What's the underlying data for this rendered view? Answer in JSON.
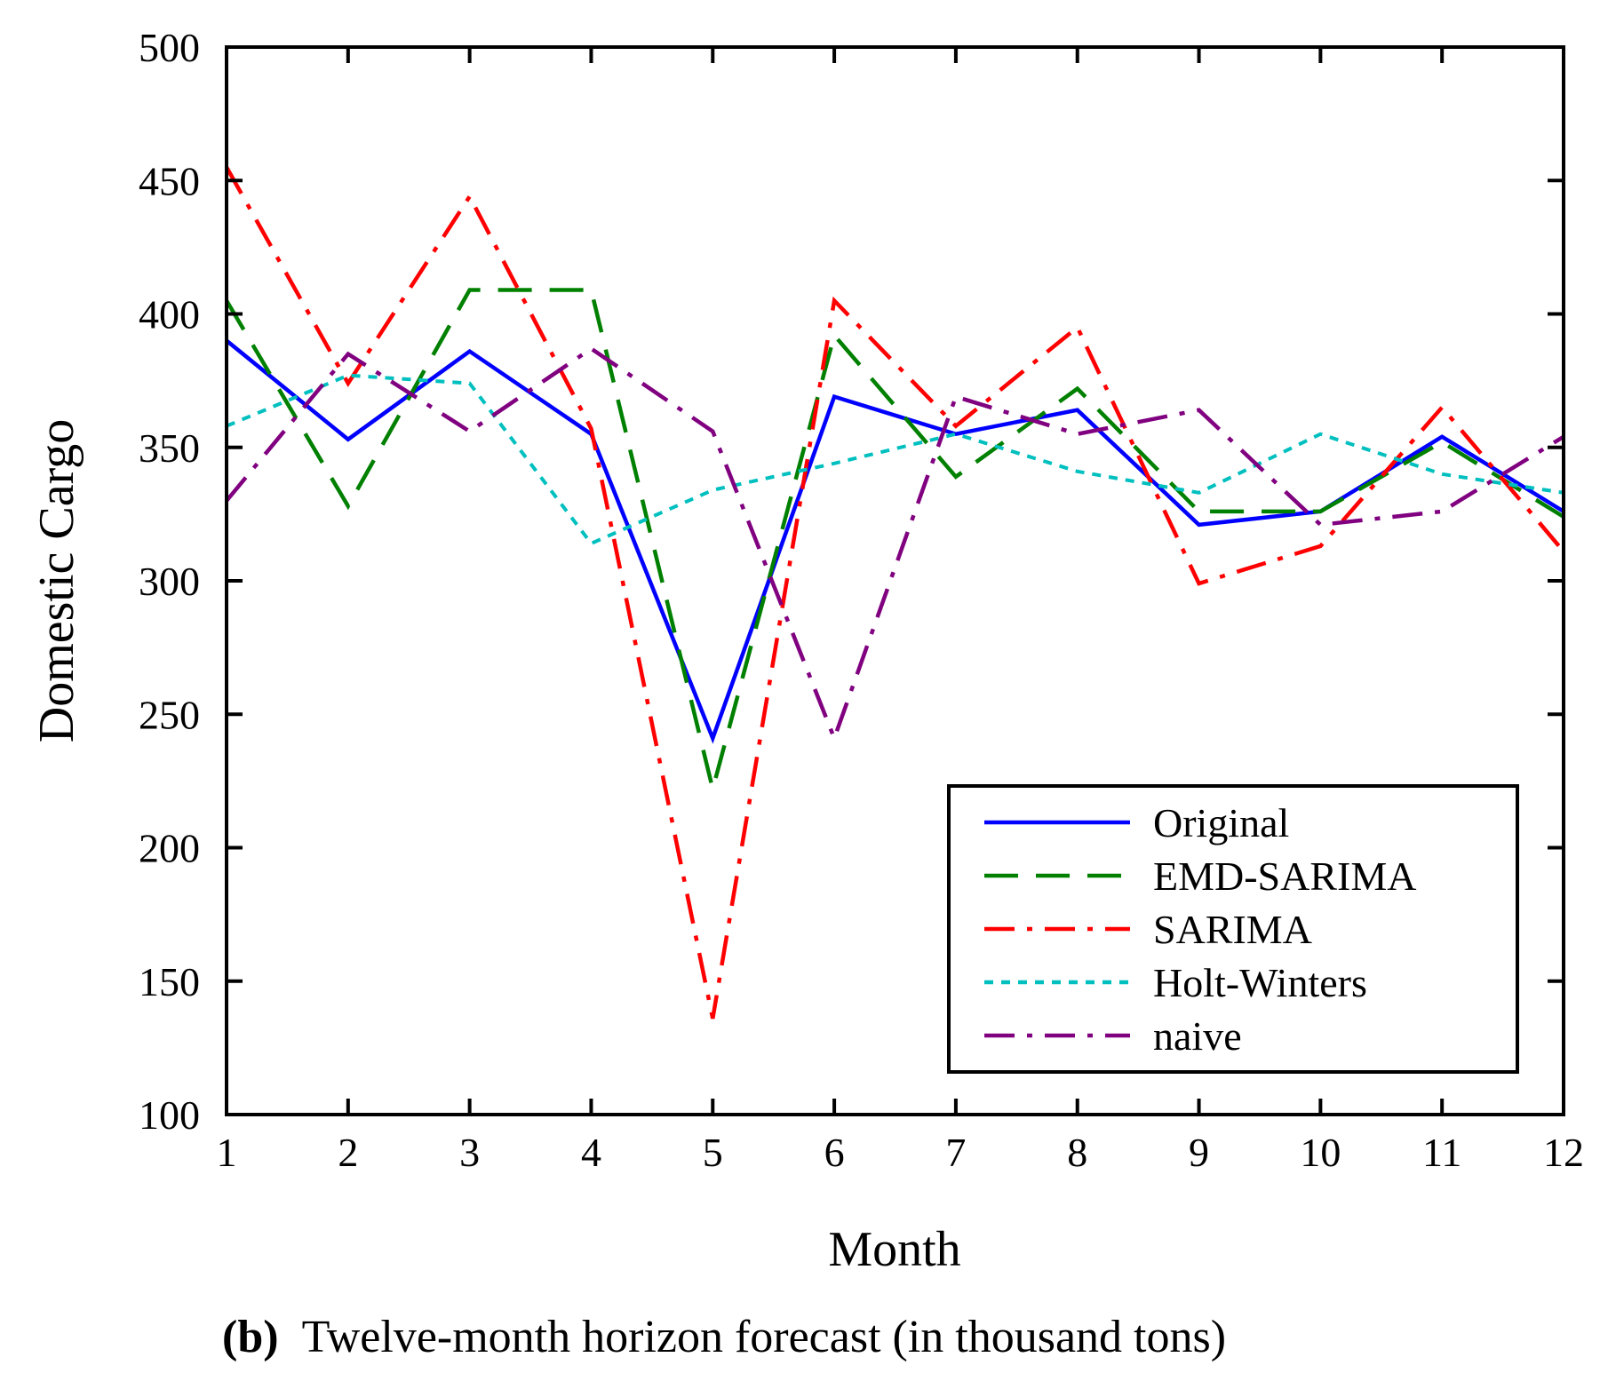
{
  "chart_data": {
    "type": "line",
    "title": "",
    "caption": {
      "label": "(b)",
      "text": "Twelve-month horizon forecast (in thousand tons)"
    },
    "xlabel": "Month",
    "ylabel": "Domestic Cargo",
    "xlim": [
      1,
      12
    ],
    "ylim": [
      100,
      500
    ],
    "x": [
      1,
      2,
      3,
      4,
      5,
      6,
      7,
      8,
      9,
      10,
      11,
      12
    ],
    "xticks": [
      "1",
      "2",
      "3",
      "4",
      "5",
      "6",
      "7",
      "8",
      "9",
      "10",
      "11",
      "12"
    ],
    "yticks": [
      "100",
      "150",
      "200",
      "250",
      "300",
      "350",
      "400",
      "450",
      "500"
    ],
    "ytick_values": [
      100,
      150,
      200,
      250,
      300,
      350,
      400,
      450,
      500
    ],
    "grid": false,
    "legend_position": "lower-right",
    "series": [
      {
        "name": "Original",
        "color": "#0000ff",
        "dash": "solid",
        "values": [
          390,
          353,
          386,
          355,
          241,
          369,
          355,
          364,
          321,
          326,
          354,
          326
        ]
      },
      {
        "name": "EMD-SARIMA",
        "color": "#008000",
        "dash": "dashed",
        "values": [
          405,
          328,
          409,
          409,
          222,
          392,
          339,
          372,
          326,
          326,
          352,
          324
        ]
      },
      {
        "name": "SARIMA",
        "color": "#ff0000",
        "dash": "dashdot",
        "values": [
          455,
          374,
          444,
          357,
          136,
          405,
          358,
          395,
          299,
          313,
          365,
          311
        ]
      },
      {
        "name": "Holt-Winters",
        "color": "#00bfbf",
        "dash": "dotted",
        "values": [
          358,
          377,
          374,
          314,
          334,
          344,
          355,
          341,
          333,
          355,
          340,
          333
        ]
      },
      {
        "name": "naive",
        "color": "#800080",
        "dash": "dashdot",
        "values": [
          330,
          385,
          356,
          387,
          356,
          241,
          369,
          355,
          364,
          321,
          326,
          354
        ]
      }
    ]
  }
}
